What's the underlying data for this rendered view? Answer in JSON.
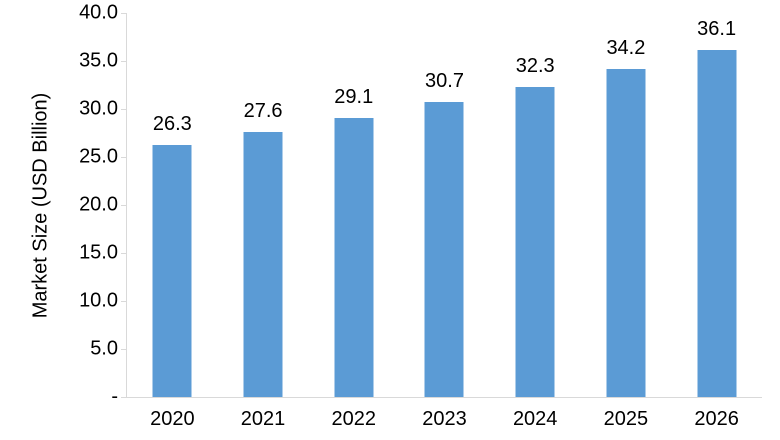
{
  "chart_data": {
    "type": "bar",
    "title": "",
    "xlabel": "",
    "ylabel": "Market Size (USD Billion)",
    "categories": [
      "2020",
      "2021",
      "2022",
      "2023",
      "2024",
      "2025",
      "2026"
    ],
    "values": [
      26.3,
      27.6,
      29.1,
      30.7,
      32.3,
      34.2,
      36.1
    ],
    "data_labels": [
      "26.3",
      "27.6",
      "29.1",
      "30.7",
      "32.3",
      "34.2",
      "36.1"
    ],
    "ylim": [
      0,
      40
    ],
    "yticks": [
      {
        "label": "-",
        "value": 0
      },
      {
        "label": "5.0",
        "value": 5
      },
      {
        "label": "10.0",
        "value": 10
      },
      {
        "label": "15.0",
        "value": 15
      },
      {
        "label": "20.0",
        "value": 20
      },
      {
        "label": "25.0",
        "value": 25
      },
      {
        "label": "30.0",
        "value": 30
      },
      {
        "label": "35.0",
        "value": 35
      },
      {
        "label": "40.0",
        "value": 40
      }
    ],
    "grid": "off",
    "legend_position": "none",
    "bar_color": "#5B9BD5",
    "axis_color": "#D9D9D9",
    "text_color": "#000000"
  }
}
